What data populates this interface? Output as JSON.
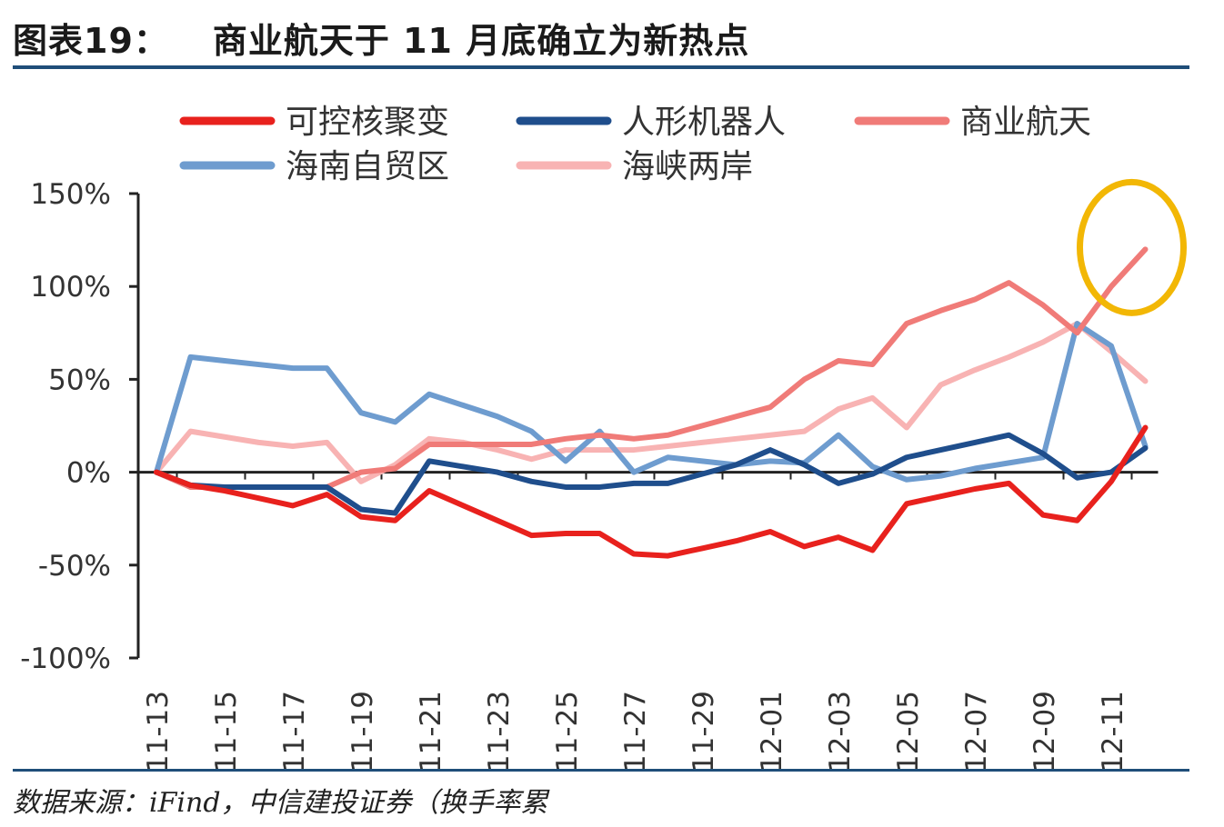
{
  "header": {
    "figure_no": "图表19：",
    "title": "商业航天于 11 月底确立为新热点"
  },
  "footer": {
    "source": "数据来源：iFind，中信建投证券（换手率累"
  },
  "chart_data": {
    "type": "line",
    "title": "",
    "xlabel": "",
    "ylabel": "",
    "ylim": [
      -100,
      150
    ],
    "yticks": [
      "150%",
      "100%",
      "50%",
      "0%",
      "-50%",
      "-100%"
    ],
    "ytick_values": [
      150,
      100,
      50,
      0,
      -50,
      -100
    ],
    "x_tick_labels": [
      "11-13",
      "11-15",
      "11-17",
      "11-19",
      "11-21",
      "11-23",
      "11-25",
      "11-27",
      "11-29",
      "12-01",
      "12-03",
      "12-05",
      "12-07",
      "12-09",
      "12-11"
    ],
    "x_tick_indices": [
      0,
      2,
      4,
      6,
      8,
      10,
      12,
      14,
      16,
      18,
      20,
      22,
      24,
      26,
      28
    ],
    "n_points": 30,
    "legend_position": "top",
    "grid": false,
    "annotation": {
      "type": "ellipse",
      "color": "#f2b705",
      "target_series": "商业航天"
    },
    "series": [
      {
        "name": "可控核聚变",
        "color": "#e8211d",
        "values": [
          0,
          -7,
          -10,
          -14,
          -18,
          -12,
          -24,
          -26,
          -10,
          -18,
          -26,
          -34,
          -33,
          -33,
          -44,
          -45,
          -41,
          -37,
          -32,
          -40,
          -35,
          -42,
          -17,
          -13,
          -9,
          -6,
          -23,
          -26,
          -5,
          24
        ]
      },
      {
        "name": "人形机器人",
        "color": "#1f4e8c",
        "values": [
          0,
          -7,
          -8,
          -8,
          -8,
          -8,
          -20,
          -22,
          6,
          3,
          0,
          -5,
          -8,
          -8,
          -6,
          -6,
          -1,
          4,
          12,
          4,
          -6,
          -1,
          8,
          12,
          16,
          20,
          10,
          -3,
          0,
          13
        ]
      },
      {
        "name": "商业航天",
        "color": "#f07b78",
        "values": [
          0,
          -8,
          -8,
          -8,
          -8,
          -8,
          0,
          2,
          15,
          15,
          15,
          15,
          18,
          20,
          18,
          20,
          25,
          30,
          35,
          50,
          60,
          58,
          80,
          87,
          93,
          102,
          90,
          75,
          100,
          120
        ]
      },
      {
        "name": "海南自贸区",
        "color": "#6e9ccf",
        "values": [
          0,
          62,
          60,
          58,
          56,
          56,
          32,
          27,
          42,
          36,
          30,
          22,
          6,
          22,
          0,
          8,
          6,
          4,
          6,
          5,
          20,
          3,
          -4,
          -2,
          2,
          5,
          8,
          80,
          68,
          14
        ]
      },
      {
        "name": "海峡两岸",
        "color": "#f8b3b3",
        "values": [
          0,
          22,
          19,
          16,
          14,
          16,
          -5,
          4,
          18,
          16,
          12,
          7,
          12,
          12,
          12,
          14,
          16,
          18,
          20,
          22,
          34,
          40,
          24,
          47,
          55,
          62,
          70,
          80,
          65,
          49
        ]
      }
    ]
  }
}
